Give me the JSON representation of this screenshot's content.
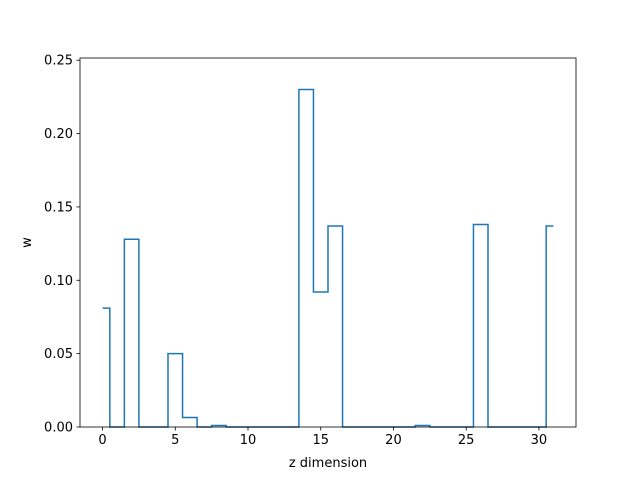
{
  "chart_data": {
    "type": "line",
    "drawstyle": "steps-mid",
    "xlabel": "z dimension",
    "ylabel": "w",
    "xlim": [
      -1.55,
      32.55
    ],
    "ylim": [
      0,
      0.2515
    ],
    "x_ticks": [
      0,
      5,
      10,
      15,
      20,
      25,
      30
    ],
    "y_ticks": [
      0.0,
      0.05,
      0.1,
      0.15,
      0.2,
      0.25
    ],
    "x_tick_labels": [
      "0",
      "5",
      "10",
      "15",
      "20",
      "25",
      "30"
    ],
    "y_tick_labels": [
      "0.00",
      "0.05",
      "0.10",
      "0.15",
      "0.20",
      "0.25"
    ],
    "grid": false,
    "line_color": "#1f77b4",
    "series": [
      {
        "x": [
          0,
          1,
          2,
          3,
          4,
          5,
          6,
          7,
          8,
          9,
          10,
          11,
          12,
          13,
          14,
          15,
          16,
          17,
          18,
          19,
          20,
          21,
          22,
          23,
          24,
          25,
          26,
          27,
          28,
          29,
          30,
          31
        ],
        "values": [
          0.081,
          0.0,
          0.128,
          0.0,
          0.0,
          0.05,
          0.0065,
          0.0,
          0.001,
          0.0,
          0.0,
          0.0,
          0.0,
          0.0,
          0.23,
          0.092,
          0.137,
          0.0,
          0.0,
          0.0,
          0.0,
          0.0,
          0.001,
          0.0,
          0.0,
          0.0,
          0.138,
          0.0,
          0.0,
          0.0,
          0.0,
          0.137
        ]
      }
    ]
  }
}
